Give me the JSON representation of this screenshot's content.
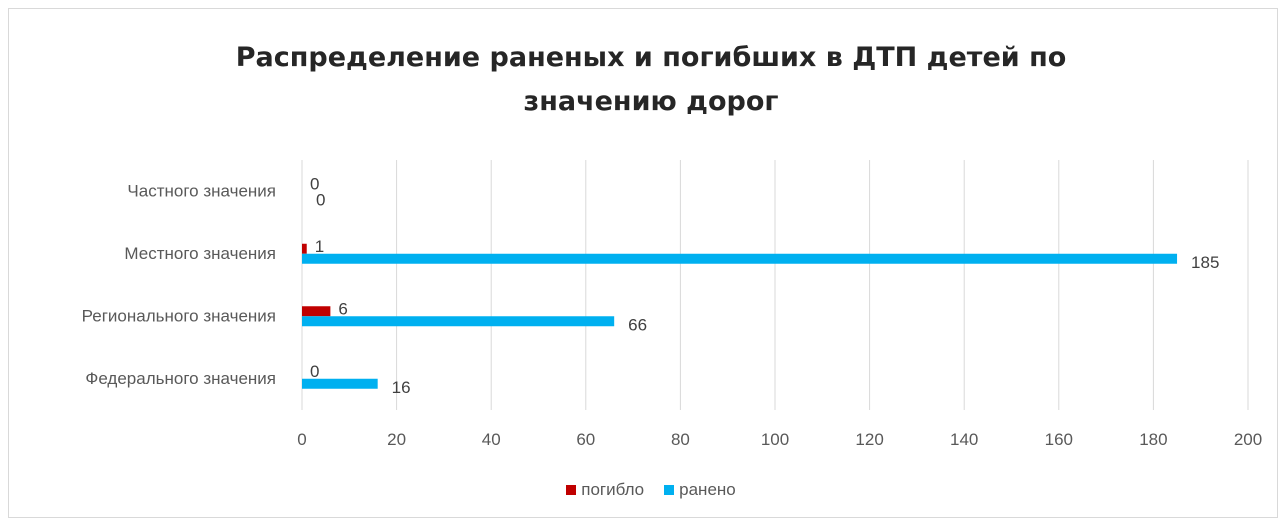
{
  "chart_data": {
    "type": "bar",
    "orientation": "horizontal",
    "title": "Распределение раненых и погибших в ДТП детей по\nзначению дорог",
    "categories": [
      "Федерального значения",
      "Регионального значения",
      "Местного значения",
      "Частного значения"
    ],
    "series": [
      {
        "name": "погибло",
        "color": "#c00000",
        "values": [
          0,
          6,
          1,
          0
        ]
      },
      {
        "name": "ранено",
        "color": "#00b0f0",
        "values": [
          16,
          66,
          185,
          0
        ]
      }
    ],
    "data_labels": {
      "погибло": [
        "0",
        "6",
        "1",
        "0"
      ],
      "ранено": [
        "16",
        "66",
        "185",
        "0"
      ]
    },
    "xlim": [
      0,
      200
    ],
    "xticks": [
      0,
      20,
      40,
      60,
      80,
      100,
      120,
      140,
      160,
      180,
      200
    ],
    "grid": "vertical",
    "legend": "bottom"
  }
}
